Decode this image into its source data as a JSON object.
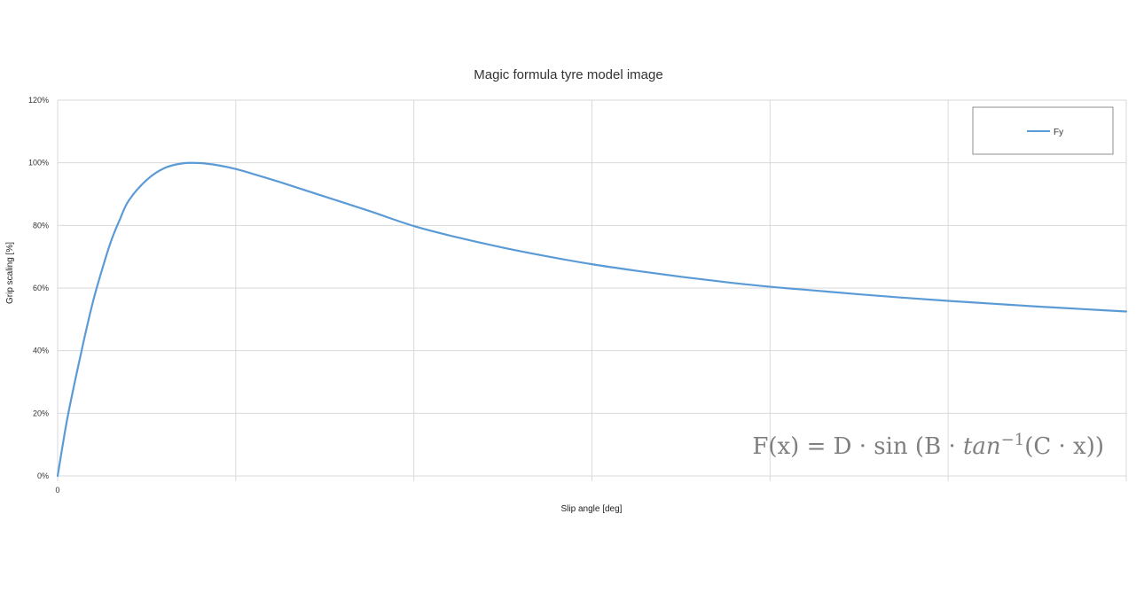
{
  "chart_data": {
    "type": "line",
    "title": "Magic formula tyre model image",
    "xlabel": "Slip angle [deg]",
    "ylabel": "Grip scaling [%]",
    "x_ticks": [
      "0"
    ],
    "y_ticks": [
      "0%",
      "20%",
      "40%",
      "60%",
      "80%",
      "100%",
      "120%"
    ],
    "xlim": [
      0,
      6
    ],
    "ylim": [
      0,
      120
    ],
    "grid": true,
    "legend_position": "top-right",
    "series": [
      {
        "name": "Fy",
        "color": "#5b9bd5",
        "x": [
          0,
          0.05,
          0.1,
          0.15,
          0.2,
          0.25,
          0.3,
          0.35,
          0.4,
          0.5,
          0.6,
          0.7,
          0.8,
          0.9,
          1.0,
          1.1,
          1.25,
          1.5,
          1.75,
          2.0,
          2.25,
          2.5,
          2.75,
          3.0,
          3.25,
          3.5,
          3.75,
          4.0,
          4.25,
          4.5,
          4.75,
          5.0,
          5.25,
          5.5,
          5.75,
          6.0
        ],
        "values": [
          0,
          17,
          31,
          44,
          56,
          66,
          75,
          82,
          88,
          94.5,
          98.3,
          99.8,
          99.9,
          99.2,
          98.0,
          96.4,
          93.8,
          89.2,
          84.6,
          79.8,
          76.1,
          72.9,
          70.1,
          67.6,
          65.5,
          63.6,
          61.9,
          60.4,
          59.2,
          58.0,
          56.9,
          55.9,
          55.0,
          54.1,
          53.3,
          52.5
        ]
      }
    ]
  },
  "formula": {
    "lhs": "F(x) = D · sin (B · ",
    "fn": "tan",
    "sup": "−1",
    "rhs": "(C · x))"
  }
}
